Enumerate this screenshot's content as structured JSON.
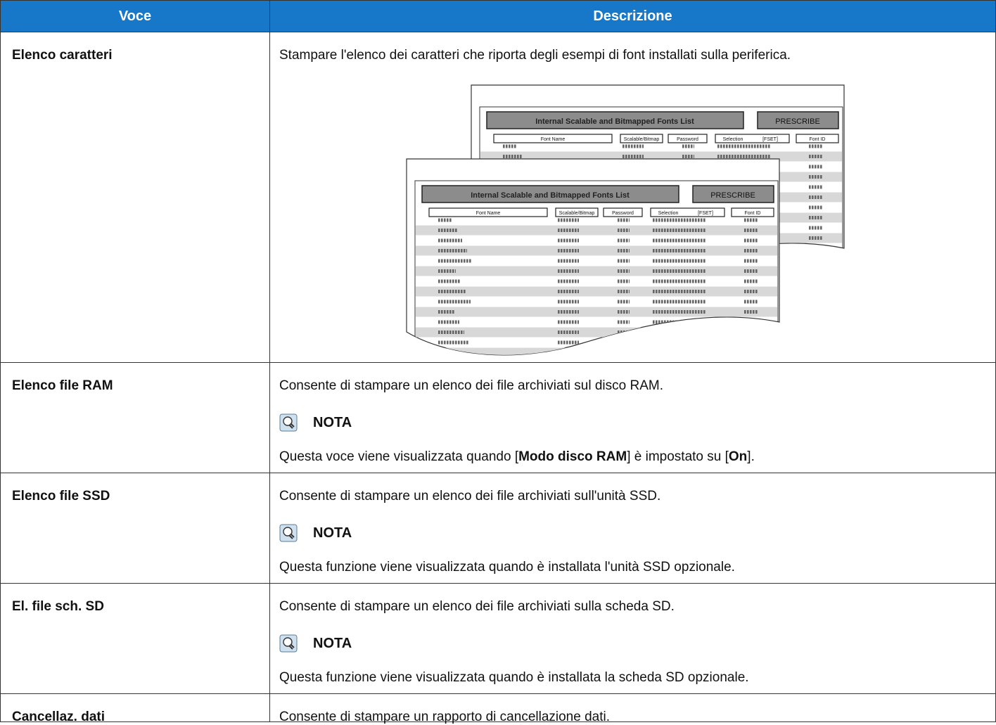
{
  "table": {
    "header": [
      "Voce",
      "Descrizione"
    ],
    "rows": [
      {
        "item": "Elenco caratteri",
        "description": "Stampare l'elenco dei caratteri che riporta degli esempi di font installati sulla periferica.",
        "illustration": {
          "title": "Internal Scalable and Bitmapped Fonts List",
          "badge": "PRESCRIBE",
          "columns": [
            "Font Name",
            "Scalable/Bitmap",
            "Password",
            "Selection",
            "[FSET]",
            "Font ID"
          ]
        }
      },
      {
        "item": "Elenco file RAM",
        "description": "Consente di stampare un elenco dei file archiviati sul disco RAM.",
        "note": {
          "label": "NOTA",
          "parts": [
            {
              "text": "Questa voce viene visualizzata quando ["
            },
            {
              "text": "Modo disco RAM",
              "strong": true
            },
            {
              "text": "] è impostato su ["
            },
            {
              "text": "On",
              "strong": true
            },
            {
              "text": "]."
            }
          ]
        }
      },
      {
        "item": "Elenco file SSD",
        "description": "Consente di stampare un elenco dei file archiviati sull'unità SSD.",
        "note": {
          "label": "NOTA",
          "parts": [
            {
              "text": "Questa funzione viene visualizzata quando è installata l'unità SSD opzionale."
            }
          ]
        }
      },
      {
        "item": "El. file sch. SD",
        "description": "Consente di stampare un elenco dei file archiviati sulla scheda SD.",
        "note": {
          "label": "NOTA",
          "parts": [
            {
              "text": "Questa funzione viene visualizzata quando è installata la scheda SD opzionale."
            }
          ]
        }
      },
      {
        "item": "Cancellaz. dati",
        "description": "Consente di stampare un rapporto di cancellazione dati."
      }
    ]
  }
}
